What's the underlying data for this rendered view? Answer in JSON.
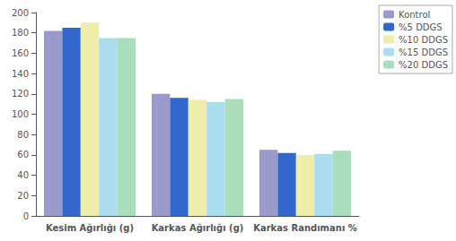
{
  "chart_data": {
    "type": "bar",
    "categories": [
      "Kesim Ağırlığı (g)",
      "Karkas Ağırlığı (g)",
      "Karkas Randımanı %"
    ],
    "series": [
      {
        "name": "Kontrol",
        "color": "#9999cc",
        "values": [
          182,
          120,
          65
        ]
      },
      {
        "name": "%5 DDGS",
        "color": "#3366cc",
        "values": [
          185,
          116,
          62
        ]
      },
      {
        "name": "%10 DDGS",
        "color": "#eeeeaa",
        "values": [
          190,
          114,
          60
        ]
      },
      {
        "name": "%15 DDGS",
        "color": "#aaddee",
        "values": [
          175,
          112,
          61
        ]
      },
      {
        "name": "%20 DDGS",
        "color": "#aaddbb",
        "values": [
          175,
          115,
          64
        ]
      }
    ],
    "ylim": [
      0,
      200
    ],
    "yticks": [
      0,
      20,
      40,
      60,
      80,
      100,
      120,
      140,
      160,
      180,
      200
    ],
    "grid": false,
    "legend": "upper right"
  }
}
